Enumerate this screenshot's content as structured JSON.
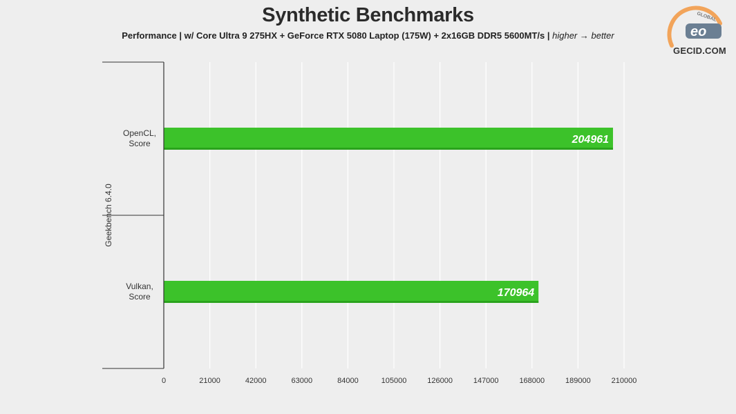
{
  "chart_data": {
    "type": "bar",
    "orientation": "horizontal",
    "title": "Synthetic Benchmarks",
    "subtitle_main": "Performance | w/ Core Ultra 9 275HX + GeForce RTX 5080 Laptop (175W) + 2x16GB DDR5 5600MT/s |",
    "subtitle_note": "higher → better",
    "group_label": "Geekbench 6.4.0",
    "categories": [
      [
        "OpenCL,",
        "Score"
      ],
      [
        "Vulkan,",
        "Score"
      ]
    ],
    "values": [
      204961,
      170964
    ],
    "value_labels": [
      "204961",
      "170964"
    ],
    "xlim": [
      0,
      210000
    ],
    "xticks": [
      0,
      21000,
      42000,
      63000,
      84000,
      105000,
      126000,
      147000,
      168000,
      189000,
      210000
    ],
    "grid": true,
    "bar_color": "#3cc22a",
    "bar_color_dark": "#2aa31c"
  },
  "logo": {
    "text": "GECID.COM",
    "badge_text": "GLOBAL",
    "mark_text": "eo"
  }
}
